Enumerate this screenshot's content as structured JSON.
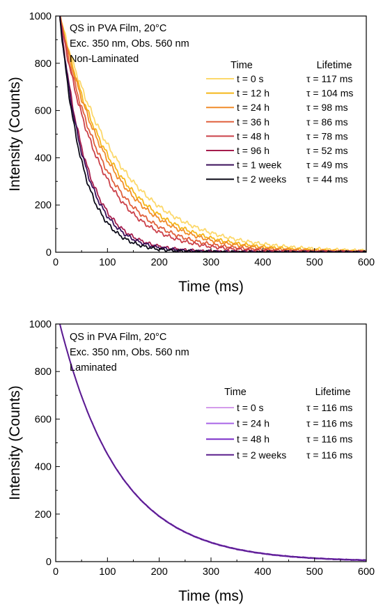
{
  "chart_data": [
    {
      "type": "line",
      "panel": "top",
      "annotation_lines": [
        "QS in PVA Film, 20°C",
        "Exc. 350 nm, Obs. 560 nm",
        "Non-Laminated"
      ],
      "legend_header_series": "Time",
      "legend_header_value": "Lifetime",
      "xlabel": "Time (ms)",
      "ylabel": "Intensity (Counts)",
      "xlim": [
        0,
        600
      ],
      "ylim": [
        0,
        1000
      ],
      "xticks": [
        "0",
        "100",
        "200",
        "300",
        "400",
        "500",
        "600"
      ],
      "yticks": [
        "0",
        "200",
        "400",
        "600",
        "800",
        "1000"
      ],
      "grid": false,
      "legend_position": "top-right",
      "x_start": 8,
      "series": [
        {
          "name": "t = 0 s",
          "lifetime_label": "τ = 117 ms",
          "lifetime_ms": 117,
          "color": "#FCD86A"
        },
        {
          "name": "t = 12 h",
          "lifetime_label": "τ = 104 ms",
          "lifetime_ms": 104,
          "color": "#F5B619"
        },
        {
          "name": "t = 24 h",
          "lifetime_label": "τ = 98 ms",
          "lifetime_ms": 98,
          "color": "#F08C2A"
        },
        {
          "name": "t = 36 h",
          "lifetime_label": "τ = 86 ms",
          "lifetime_ms": 86,
          "color": "#E0603C"
        },
        {
          "name": "t = 48 h",
          "lifetime_label": "τ = 78 ms",
          "lifetime_ms": 78,
          "color": "#CB4049"
        },
        {
          "name": "t = 96 h",
          "lifetime_label": "τ = 52 ms",
          "lifetime_ms": 52,
          "color": "#A51C4C"
        },
        {
          "name": "t = 1 week",
          "lifetime_label": "τ = 49 ms",
          "lifetime_ms": 49,
          "color": "#3A0F5A"
        },
        {
          "name": "t = 2 weeks",
          "lifetime_label": "τ = 44 ms",
          "lifetime_ms": 44,
          "color": "#0B0A18"
        }
      ]
    },
    {
      "type": "line",
      "panel": "bottom",
      "annotation_lines": [
        "QS in PVA Film, 20°C",
        "Exc. 350 nm, Obs. 560 nm",
        "Laminated"
      ],
      "legend_header_series": "Time",
      "legend_header_value": "Lifetime",
      "xlabel": "Time (ms)",
      "ylabel": "Intensity (Counts)",
      "xlim": [
        0,
        600
      ],
      "ylim": [
        0,
        1000
      ],
      "xticks": [
        "0",
        "100",
        "200",
        "300",
        "400",
        "500",
        "600"
      ],
      "yticks": [
        "0",
        "200",
        "400",
        "600",
        "800",
        "1000"
      ],
      "grid": false,
      "legend_position": "right",
      "x_start": 8,
      "series": [
        {
          "name": "t = 0 s",
          "lifetime_label": "τ = 116 ms",
          "lifetime_ms": 116,
          "color": "#D49BEB"
        },
        {
          "name": "t = 24 h",
          "lifetime_label": "τ = 116 ms",
          "lifetime_ms": 116,
          "color": "#A965E6"
        },
        {
          "name": "t = 48 h",
          "lifetime_label": "τ = 116 ms",
          "lifetime_ms": 116,
          "color": "#7A2DC8"
        },
        {
          "name": "t = 2 weeks",
          "lifetime_label": "τ = 116 ms",
          "lifetime_ms": 116,
          "color": "#5A1E8C"
        }
      ]
    }
  ]
}
